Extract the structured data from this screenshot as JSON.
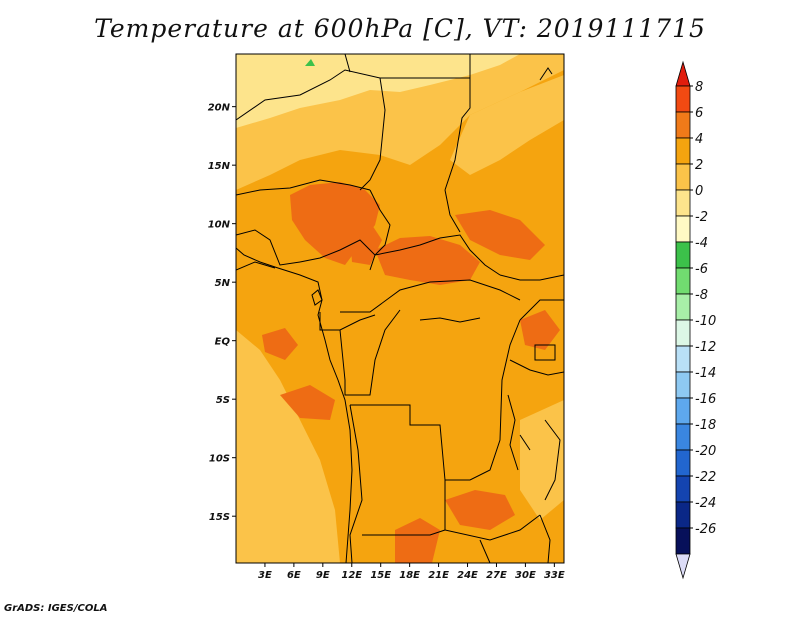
{
  "title": "Temperature at 600hPa [C], VT: 2019111715",
  "credit": "GrADS: IGES/COLA",
  "map": {
    "lat_range": [
      -19,
      24.5
    ],
    "lon_range": [
      0,
      34
    ],
    "lat_ticks": [
      {
        "value": 20,
        "label": "20N"
      },
      {
        "value": 15,
        "label": "15N"
      },
      {
        "value": 10,
        "label": "10N"
      },
      {
        "value": 5,
        "label": "5N"
      },
      {
        "value": 0,
        "label": "EQ"
      },
      {
        "value": -5,
        "label": "5S"
      },
      {
        "value": -10,
        "label": "10S"
      },
      {
        "value": -15,
        "label": "15S"
      }
    ],
    "lon_ticks": [
      {
        "value": 3,
        "label": "3E"
      },
      {
        "value": 6,
        "label": "6E"
      },
      {
        "value": 9,
        "label": "9E"
      },
      {
        "value": 12,
        "label": "12E"
      },
      {
        "value": 15,
        "label": "15E"
      },
      {
        "value": 18,
        "label": "18E"
      },
      {
        "value": 21,
        "label": "21E"
      },
      {
        "value": 24,
        "label": "24E"
      },
      {
        "value": 27,
        "label": "27E"
      },
      {
        "value": 30,
        "label": "30E"
      },
      {
        "value": 33,
        "label": "33E"
      }
    ],
    "fill_colors": {
      "base": "#f5a40f",
      "warm": "#ee6c14",
      "cool": "#fbc349",
      "cooler": "#fde48c",
      "green": "#3cc14a"
    },
    "border_color": "#000000"
  },
  "colorbar": {
    "levels": [
      "8",
      "6",
      "4",
      "2",
      "0",
      "-2",
      "-4",
      "-6",
      "-8",
      "-10",
      "-12",
      "-14",
      "-16",
      "-18",
      "-20",
      "-22",
      "-24",
      "-26"
    ],
    "colors": [
      "#e11d0d",
      "#f24a12",
      "#f07a19",
      "#f5a40f",
      "#fbc349",
      "#fde48c",
      "#fff9c4",
      "#3cc14a",
      "#71dc70",
      "#a8efa8",
      "#dcf7e6",
      "#b9e0f7",
      "#8ec9f2",
      "#5ea8ed",
      "#3a86e0",
      "#2266cf",
      "#1444b0",
      "#0a2787",
      "#07105a",
      "#dcdcf7"
    ]
  }
}
